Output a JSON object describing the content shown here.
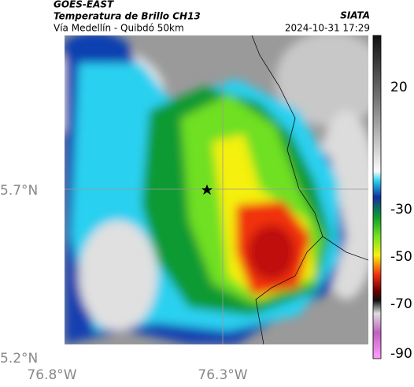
{
  "header": {
    "source": "GOES-EAST",
    "title": "Temperatura de Brillo CH13",
    "subtitle": "Vía Medellín - Quibdó 50km",
    "agency": "SIATA",
    "timestamp": "2024-10-31 17:29"
  },
  "axes": {
    "y_labels": [
      "5.7°N",
      "5.2°N"
    ],
    "x_labels": [
      "76.8°W",
      "76.3°W"
    ]
  },
  "colorbar": {
    "labels": [
      "20",
      "-30",
      "-50",
      "-70",
      "-90"
    ]
  }
}
